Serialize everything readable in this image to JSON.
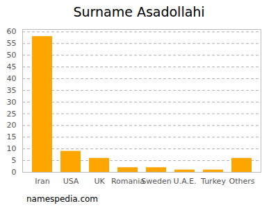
{
  "chart_data": {
    "type": "bar",
    "title": "Surname Asadollahi",
    "categories": [
      "Iran",
      "USA",
      "UK",
      "Romania",
      "Sweden",
      "U.A.E.",
      "Turkey",
      "Others"
    ],
    "values": [
      58,
      9,
      6,
      2,
      2,
      1,
      1,
      6
    ],
    "color": "#ffa500",
    "ylim": [
      0,
      61
    ],
    "yticks": [
      0,
      5,
      10,
      15,
      20,
      25,
      30,
      35,
      40,
      45,
      50,
      55,
      60
    ],
    "grid": true,
    "caption": "namespedia.com"
  }
}
